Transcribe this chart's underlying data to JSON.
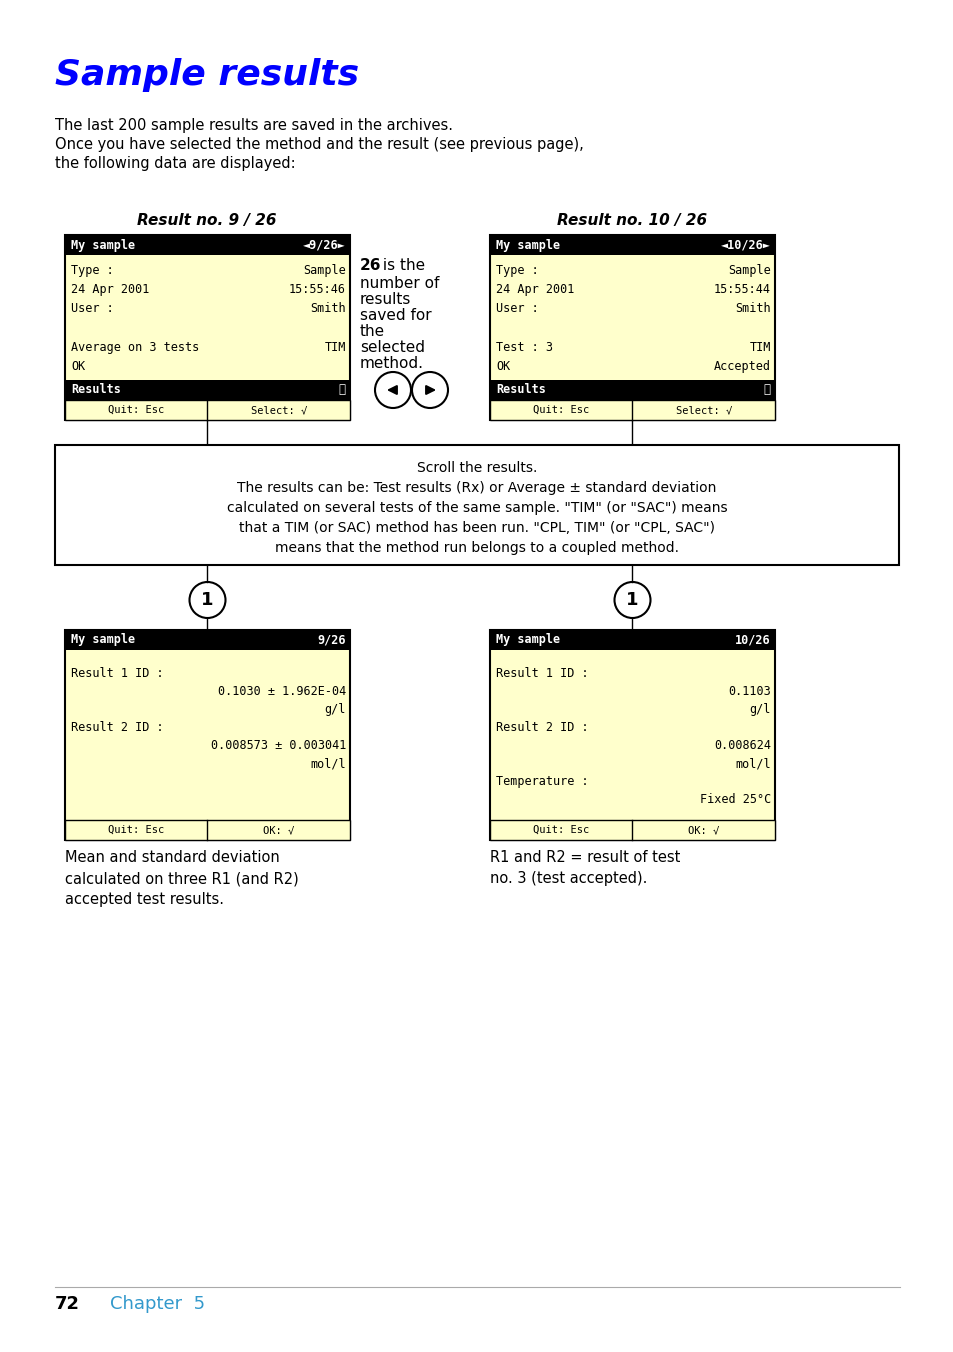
{
  "title": "Sample results",
  "title_color": "#0000FF",
  "body_color": "#000000",
  "bg_color": "#FFFFFF",
  "screen_bg": "#FFFFCC",
  "screen_header_bg": "#000000",
  "screen_header_fg": "#FFFFFF",
  "screen_border": "#000000",
  "intro_lines": [
    "The last 200 sample results are saved in the archives.",
    "Once you have selected the method and the result (see previous page),",
    "the following data are displayed:"
  ],
  "result_no_left": "Result no. 9 / 26",
  "result_no_right": "Result no. 10 / 26",
  "screen1_header": "My sample",
  "screen1_header_right": "◄9/26►",
  "screen1_lines": [
    [
      "Type :",
      "Sample"
    ],
    [
      "24 Apr 2001",
      "15:55:46"
    ],
    [
      "User :",
      "Smith"
    ],
    [
      "",
      ""
    ],
    [
      "Average on 3 tests",
      "TIM"
    ],
    [
      "OK",
      ""
    ]
  ],
  "screen1_results_bar": "Results",
  "screen1_results_num": "①",
  "screen1_footer": [
    "Quit: Esc",
    "Select: √"
  ],
  "screen2_header": "My sample",
  "screen2_header_right": "◄10/26►",
  "screen2_lines": [
    [
      "Type :",
      "Sample"
    ],
    [
      "24 Apr 2001",
      "15:55:44"
    ],
    [
      "User :",
      "Smith"
    ],
    [
      "",
      ""
    ],
    [
      "Test : 3",
      "TIM"
    ],
    [
      "OK",
      "Accepted"
    ]
  ],
  "screen2_results_bar": "Results",
  "screen2_results_num": "①",
  "screen2_footer": [
    "Quit: Esc",
    "Select: √"
  ],
  "callout_bold": "26",
  "callout_rest": " is the\nnumber of\nresults\nsaved for\nthe\nselected\nmethod.",
  "scroll_box_lines": [
    "Scroll the results.",
    "The results can be: Test results (Rx) or Average ± standard deviation",
    "calculated on several tests of the same sample. \"TIM\" (or \"SAC\") means",
    "that a TIM (or SAC) method has been run. \"CPL, TIM\" (or \"CPL, SAC\")",
    "means that the method run belongs to a coupled method."
  ],
  "screen3_header": "My sample",
  "screen3_header_right": "9/26",
  "screen3_lines": [
    [
      "left",
      "Result 1 ID :"
    ],
    [
      "right",
      "0.1030 ± 1.962E-04"
    ],
    [
      "right",
      "g/l"
    ],
    [
      "left",
      "Result 2 ID :"
    ],
    [
      "right",
      "0.008573 ± 0.003041"
    ],
    [
      "right",
      "mol/l"
    ]
  ],
  "screen3_footer": [
    "Quit: Esc",
    "OK: √"
  ],
  "screen4_header": "My sample",
  "screen4_header_right": "10/26",
  "screen4_lines": [
    [
      "left",
      "Result 1 ID :"
    ],
    [
      "right",
      "0.1103"
    ],
    [
      "right",
      "g/l"
    ],
    [
      "left",
      "Result 2 ID :"
    ],
    [
      "right",
      "0.008624"
    ],
    [
      "right",
      "mol/l"
    ],
    [
      "left",
      "Temperature :"
    ],
    [
      "right",
      "Fixed 25°C"
    ]
  ],
  "screen4_footer": [
    "Quit: Esc",
    "OK: √"
  ],
  "caption_left": "Mean and standard deviation\ncalculated on three R1 (and R2)\naccepted test results.",
  "caption_right": "R1 and R2 = result of test\nno. 3 (test accepted).",
  "footer_page": "72",
  "footer_chapter": "Chapter  5",
  "footer_chapter_color": "#3399CC"
}
